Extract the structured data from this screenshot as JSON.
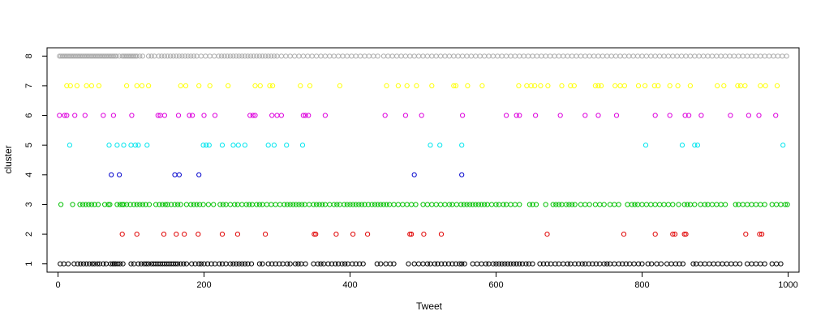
{
  "chart_data": {
    "type": "scatter",
    "title": "",
    "xlabel": "Tweet",
    "ylabel": "cluster",
    "xlim": [
      -15,
      1015
    ],
    "ylim": [
      0.72,
      8.28
    ],
    "xticks": [
      0,
      200,
      400,
      600,
      800,
      1000
    ],
    "yticks": [
      1,
      2,
      3,
      4,
      5,
      6,
      7,
      8
    ],
    "grid": false,
    "legend": "none",
    "marker": "open-circle",
    "series": [
      {
        "cluster": 1,
        "color": "#000000",
        "x": [
          3,
          8,
          14,
          22,
          27,
          31,
          35,
          39,
          43,
          47,
          50,
          54,
          57,
          62,
          66,
          72,
          75,
          77,
          79,
          82,
          85,
          89,
          100,
          104,
          110,
          114,
          118,
          121,
          124,
          128,
          131,
          134,
          137,
          140,
          143,
          146,
          149,
          152,
          155,
          158,
          161,
          164,
          168,
          172,
          176,
          183,
          188,
          193,
          196,
          200,
          205,
          210,
          215,
          221,
          225,
          230,
          236,
          240,
          244,
          248,
          252,
          256,
          260,
          265,
          276,
          280,
          288,
          293,
          298,
          303,
          308,
          314,
          318,
          325,
          329,
          333,
          339,
          350,
          356,
          360,
          364,
          370,
          375,
          380,
          384,
          389,
          393,
          397,
          403,
          408,
          413,
          418,
          437,
          442,
          449,
          455,
          460,
          480,
          488,
          494,
          500,
          506,
          510,
          516,
          520,
          525,
          530,
          535,
          540,
          545,
          550,
          553,
          557,
          568,
          574,
          580,
          586,
          590,
          596,
          600,
          604,
          608,
          612,
          616,
          620,
          624,
          628,
          632,
          636,
          641,
          645,
          650,
          660,
          665,
          670,
          675,
          681,
          686,
          692,
          698,
          702,
          708,
          713,
          718,
          722,
          727,
          732,
          737,
          742,
          748,
          752,
          756,
          762,
          768,
          773,
          778,
          783,
          789,
          795,
          800,
          808,
          813,
          820,
          826,
          834,
          840,
          846,
          851,
          856,
          870,
          874,
          880,
          886,
          892,
          898,
          904,
          910,
          916,
          922,
          928,
          934,
          944,
          950,
          956,
          962,
          968,
          978,
          984,
          990
        ]
      },
      {
        "cluster": 2,
        "color": "#e00000",
        "x": [
          88,
          108,
          145,
          162,
          173,
          192,
          225,
          246,
          284,
          351,
          353,
          381,
          404,
          424,
          482,
          484,
          501,
          525,
          670,
          775,
          818,
          842,
          845,
          858,
          860,
          942,
          961,
          964
        ]
      },
      {
        "cluster": 3,
        "color": "#00c000",
        "x": [
          4,
          20,
          30,
          34,
          38,
          42,
          46,
          50,
          55,
          64,
          69,
          71,
          81,
          85,
          88,
          90,
          94,
          99,
          104,
          108,
          112,
          116,
          120,
          125,
          134,
          139,
          143,
          147,
          150,
          155,
          160,
          164,
          168,
          176,
          182,
          186,
          190,
          194,
          199,
          206,
          213,
          222,
          226,
          230,
          236,
          242,
          246,
          252,
          258,
          262,
          266,
          272,
          276,
          280,
          286,
          292,
          298,
          304,
          310,
          314,
          318,
          322,
          326,
          330,
          334,
          338,
          344,
          350,
          354,
          358,
          362,
          366,
          372,
          378,
          382,
          386,
          392,
          396,
          400,
          404,
          408,
          412,
          416,
          420,
          425,
          430,
          434,
          438,
          442,
          446,
          450,
          454,
          460,
          466,
          472,
          478,
          484,
          490,
          500,
          506,
          512,
          518,
          524,
          530,
          536,
          540,
          546,
          552,
          556,
          560,
          564,
          568,
          572,
          576,
          580,
          584,
          588,
          594,
          600,
          604,
          610,
          614,
          620,
          626,
          632,
          646,
          650,
          655,
          668,
          678,
          682,
          686,
          690,
          696,
          700,
          704,
          708,
          716,
          722,
          728,
          736,
          742,
          748,
          756,
          762,
          768,
          780,
          786,
          790,
          794,
          800,
          806,
          812,
          818,
          824,
          830,
          836,
          842,
          850,
          858,
          862,
          866,
          872,
          880,
          886,
          890,
          896,
          902,
          908,
          914,
          928,
          932,
          938,
          944,
          950,
          956,
          962,
          968,
          978,
          984,
          990,
          996,
          999
        ]
      },
      {
        "cluster": 4,
        "color": "#0000cc",
        "x": [
          73,
          84,
          160,
          166,
          193,
          488,
          553
        ]
      },
      {
        "cluster": 5,
        "color": "#00e5ee",
        "x": [
          16,
          70,
          81,
          90,
          100,
          106,
          110,
          122,
          199,
          203,
          207,
          225,
          240,
          247,
          256,
          288,
          296,
          313,
          335,
          510,
          523,
          553,
          805,
          855,
          872,
          876,
          993
        ]
      },
      {
        "cluster": 6,
        "color": "#dd00dd",
        "x": [
          2,
          9,
          12,
          23,
          37,
          62,
          76,
          101,
          137,
          140,
          146,
          165,
          180,
          184,
          200,
          215,
          263,
          267,
          270,
          293,
          300,
          306,
          336,
          339,
          343,
          366,
          448,
          476,
          498,
          554,
          614,
          628,
          632,
          654,
          688,
          722,
          740,
          765,
          818,
          838,
          859,
          864,
          881,
          921,
          946,
          960,
          983
        ]
      },
      {
        "cluster": 7,
        "color": "#ffff00",
        "x": [
          12,
          17,
          26,
          39,
          46,
          56,
          94,
          108,
          115,
          124,
          168,
          175,
          193,
          208,
          233,
          270,
          277,
          290,
          294,
          332,
          345,
          386,
          450,
          466,
          478,
          491,
          512,
          542,
          545,
          561,
          581,
          631,
          642,
          648,
          653,
          661,
          671,
          690,
          702,
          707,
          736,
          740,
          744,
          763,
          770,
          776,
          795,
          804,
          817,
          822,
          838,
          849,
          866,
          903,
          912,
          931,
          935,
          941,
          962,
          969,
          985
        ]
      },
      {
        "cluster": 8,
        "color": "#aaaaaa",
        "x": [
          2,
          4,
          6,
          8,
          10,
          12,
          14,
          16,
          18,
          20,
          22,
          24,
          26,
          28,
          30,
          32,
          34,
          36,
          38,
          40,
          42,
          44,
          46,
          48,
          50,
          52,
          54,
          56,
          58,
          60,
          62,
          64,
          66,
          68,
          70,
          72,
          74,
          76,
          78,
          80,
          84,
          88,
          90,
          92,
          94,
          96,
          98,
          100,
          102,
          104,
          106,
          108,
          112,
          116,
          124,
          128,
          132,
          138,
          142,
          146,
          150,
          154,
          158,
          162,
          166,
          170,
          174,
          178,
          182,
          186,
          190,
          196,
          202,
          208,
          214,
          220,
          224,
          228,
          232,
          236,
          240,
          244,
          248,
          252,
          256,
          260,
          264,
          268,
          272,
          276,
          280,
          284,
          288,
          292,
          296,
          300,
          306,
          312,
          318,
          324,
          330,
          336,
          342,
          348,
          354,
          360,
          366,
          372,
          378,
          384,
          390,
          396,
          402,
          408,
          414,
          420,
          426,
          432,
          438,
          446,
          452,
          458,
          464,
          470,
          476,
          482,
          488,
          494,
          500,
          506,
          512,
          518,
          524,
          530,
          536,
          542,
          548,
          554,
          560,
          566,
          572,
          578,
          584,
          590,
          596,
          602,
          608,
          614,
          620,
          626,
          632,
          638,
          644,
          650,
          656,
          662,
          668,
          674,
          680,
          686,
          692,
          698,
          704,
          710,
          716,
          722,
          728,
          734,
          740,
          746,
          752,
          758,
          764,
          770,
          776,
          782,
          788,
          794,
          800,
          806,
          812,
          818,
          824,
          830,
          836,
          842,
          848,
          854,
          860,
          866,
          872,
          878,
          884,
          890,
          896,
          902,
          908,
          914,
          920,
          926,
          932,
          938,
          944,
          950,
          956,
          962,
          968,
          974,
          980,
          986,
          992,
          998
        ]
      }
    ]
  }
}
